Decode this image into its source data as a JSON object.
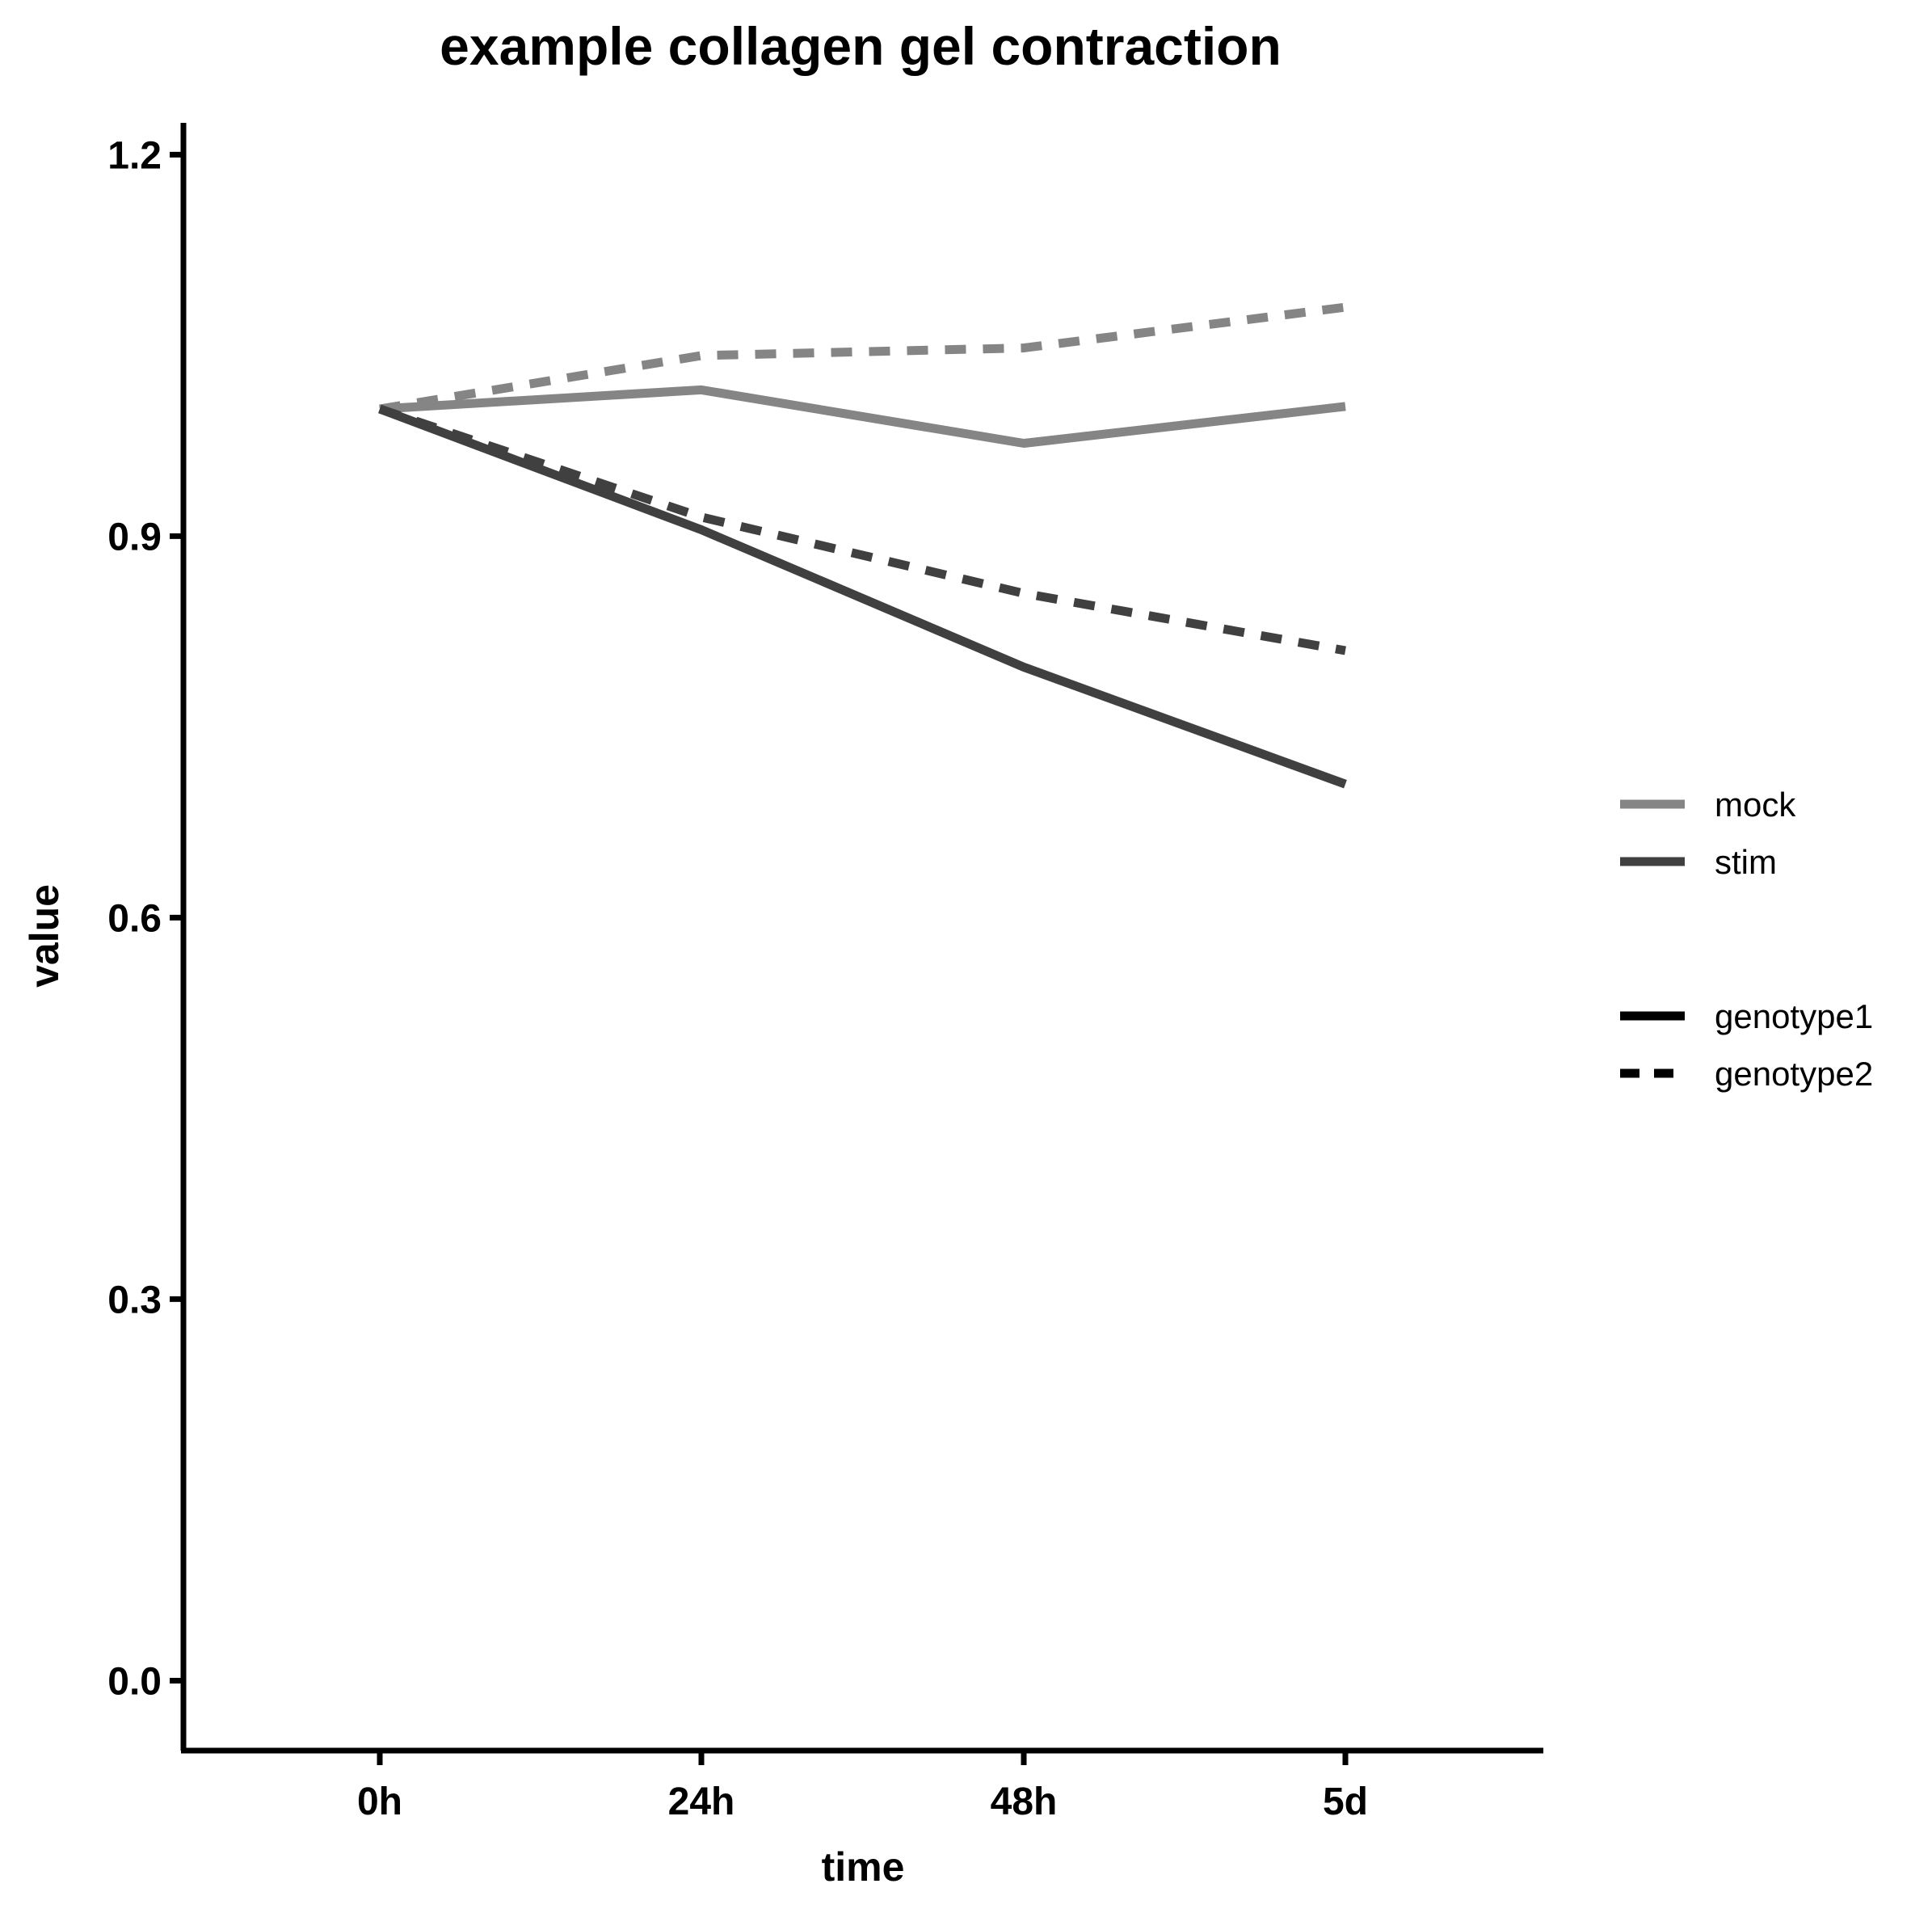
{
  "chart_data": {
    "type": "line",
    "title": "example collagen gel contraction",
    "xlabel": "time",
    "ylabel": "value",
    "categories": [
      "0h",
      "24h",
      "48h",
      "5d"
    ],
    "y_ticks": [
      "0.0",
      "0.3",
      "0.6",
      "0.9",
      "1.2"
    ],
    "ylim": [
      -0.055,
      1.225
    ],
    "grid": false,
    "legend_position": "right",
    "colors": {
      "mock": "#858585",
      "stim": "#404040",
      "legend_linetype": "#000000"
    },
    "series": [
      {
        "treatment": "mock",
        "genotype": "genotype1",
        "dashed": false,
        "values": [
          1.0,
          1.015,
          0.973,
          1.002
        ]
      },
      {
        "treatment": "mock",
        "genotype": "genotype2",
        "dashed": true,
        "values": [
          1.0,
          1.042,
          1.048,
          1.08
        ]
      },
      {
        "treatment": "stim",
        "genotype": "genotype1",
        "dashed": false,
        "values": [
          1.0,
          0.905,
          0.797,
          0.705
        ]
      },
      {
        "treatment": "stim",
        "genotype": "genotype2",
        "dashed": true,
        "values": [
          1.0,
          0.915,
          0.855,
          0.81
        ]
      }
    ],
    "legend": {
      "color_entries": [
        {
          "label": "mock",
          "color_key": "mock"
        },
        {
          "label": "stim",
          "color_key": "stim"
        }
      ],
      "linetype_entries": [
        {
          "label": "genotype1",
          "dashed": false
        },
        {
          "label": "genotype2",
          "dashed": true
        }
      ]
    }
  }
}
